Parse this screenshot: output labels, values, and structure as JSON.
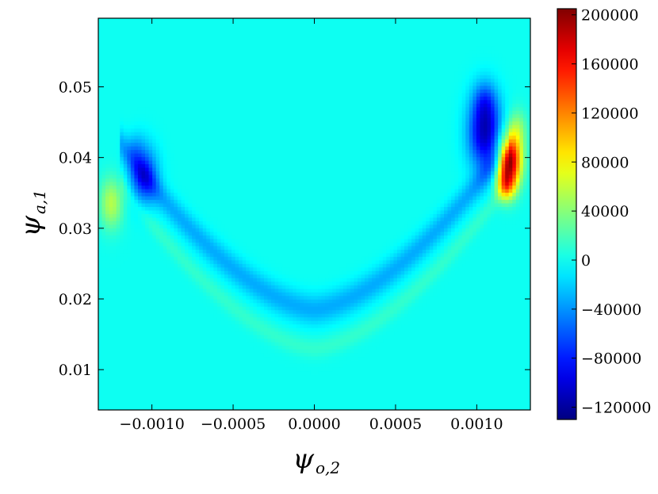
{
  "chart_data": {
    "type": "heatmap",
    "title": "",
    "xlabel": "ψ_o,2",
    "ylabel": "ψ_a,1",
    "xlabel_parts": {
      "symbol": "ψ",
      "sub": "o,2"
    },
    "ylabel_parts": {
      "symbol": "ψ",
      "sub": "a,1"
    },
    "xlim": [
      -0.00133,
      0.00133
    ],
    "ylim": [
      0.0043,
      0.0597
    ],
    "x_ticks": [
      -0.001,
      -0.0005,
      0.0,
      0.0005,
      0.001
    ],
    "x_tick_labels": [
      "−0.0010",
      "−0.0005",
      "0.0000",
      "0.0005",
      "0.0010"
    ],
    "y_ticks": [
      0.01,
      0.02,
      0.03,
      0.04,
      0.05
    ],
    "y_tick_labels": [
      "0.01",
      "0.02",
      "0.03",
      "0.04",
      "0.05"
    ],
    "colormap": "jet",
    "colorbar": {
      "vmin": -130000,
      "vmax": 205000,
      "ticks": [
        -120000,
        -80000,
        -40000,
        0,
        40000,
        80000,
        120000,
        160000,
        200000
      ],
      "tick_labels": [
        "−120000",
        "−80000",
        "−40000",
        "0",
        "40000",
        "80000",
        "120000",
        "160000",
        "200000"
      ]
    },
    "background_value": 0,
    "features": [
      {
        "x": -0.00105,
        "y": 0.0375,
        "sx": 6e-05,
        "sy": 0.0028,
        "value": -75000
      },
      {
        "x": -0.0011,
        "y": 0.0415,
        "sx": 4e-05,
        "sy": 0.0015,
        "value": -20000
      },
      {
        "x": -0.00125,
        "y": 0.0335,
        "sx": 5e-05,
        "sy": 0.0025,
        "value": 55000
      },
      {
        "x": 0.00105,
        "y": 0.0435,
        "sx": 7e-05,
        "sy": 0.0035,
        "value": -110000
      },
      {
        "x": 0.00105,
        "y": 0.048,
        "sx": 5e-05,
        "sy": 0.002,
        "value": -40000
      },
      {
        "x": 0.0012,
        "y": 0.0395,
        "sx": 5e-05,
        "sy": 0.0025,
        "value": 200000
      },
      {
        "x": 0.00125,
        "y": 0.044,
        "sx": 4e-05,
        "sy": 0.002,
        "value": 40000
      },
      {
        "x": 0.00118,
        "y": 0.036,
        "sx": 4e-05,
        "sy": 0.0015,
        "value": 80000
      }
    ],
    "valley": {
      "center_x": 0.0,
      "min_y": 0.0185,
      "x_extent": 0.00105,
      "rise": 0.019,
      "half_width": 0.0022,
      "value": -32000
    },
    "valley_lower_band": {
      "offset": -0.0055,
      "half_width": 0.0015,
      "value": 12000
    }
  }
}
